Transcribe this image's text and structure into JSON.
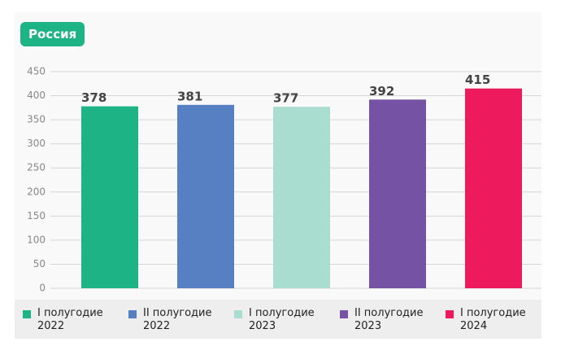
{
  "chart_data": {
    "type": "bar",
    "title": "Россия",
    "categories": [
      "I полугодие 2022",
      "II полугодие 2022",
      "I полугодие 2023",
      "II полугодие 2023",
      "I полугодие 2024"
    ],
    "values": [
      378,
      381,
      377,
      392,
      415
    ],
    "colors": [
      "#1db384",
      "#5680c2",
      "#a8ddcf",
      "#7552a3",
      "#ed1a5e"
    ],
    "ylim": [
      0,
      450
    ],
    "yticks": [
      0,
      50,
      100,
      150,
      200,
      250,
      300,
      350,
      400,
      450
    ],
    "grid": true
  }
}
